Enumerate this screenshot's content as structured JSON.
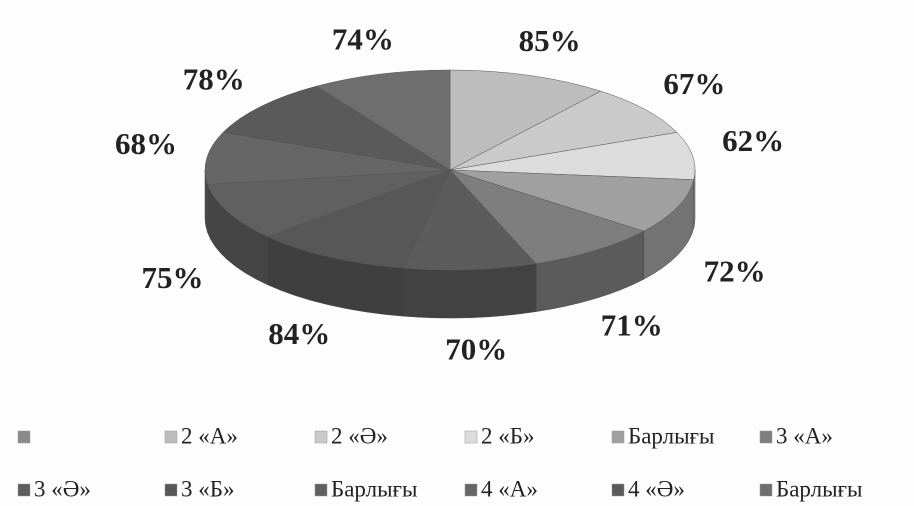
{
  "chart_data": {
    "type": "pie3d",
    "categories": [
      null,
      "2 «А»",
      "2 «Ә»",
      "2 «Б»",
      "Барлығы",
      "3 «А»",
      "3 «Ә»",
      "3 «Б»",
      "Барлығы",
      "4 «А»",
      "4 «Ә»",
      "Барлығы"
    ],
    "values": [
      null,
      85,
      67,
      62,
      72,
      71,
      70,
      84,
      75,
      68,
      78,
      74
    ],
    "value_labels": [
      null,
      "85%",
      "67%",
      "62%",
      "72%",
      "71%",
      "70%",
      "84%",
      "75%",
      "68%",
      "78%",
      "74%"
    ],
    "colors": [
      "#8a8a8a",
      "#bdbdbd",
      "#cacaca",
      "#dcdcdc",
      "#a0a0a0",
      "#7e7e7e",
      "#5c5c5c",
      "#575757",
      "#606060",
      "#666666",
      "#5a5a5a",
      "#6e6e6e"
    ]
  }
}
